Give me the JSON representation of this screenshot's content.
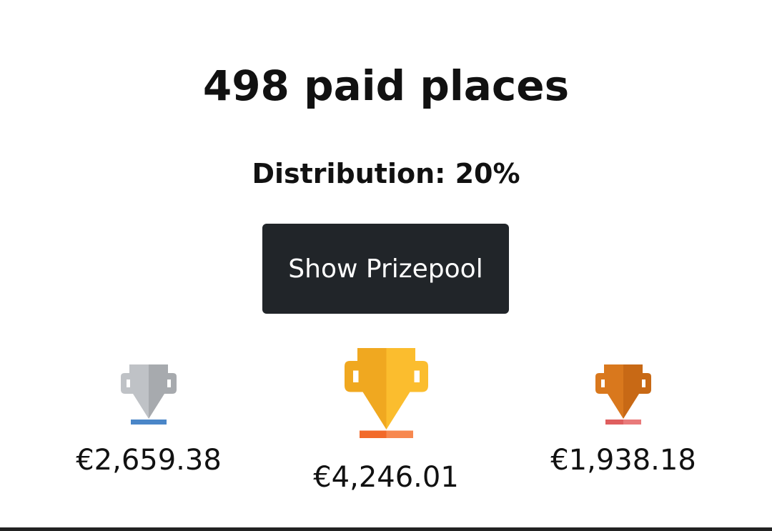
{
  "header": {
    "title": "498 paid places",
    "subtitle": "Distribution: 20%"
  },
  "button": {
    "label": "Show Prizepool"
  },
  "podium": [
    {
      "prize": "€2,659.38"
    },
    {
      "prize": "€4,246.01"
    },
    {
      "prize": "€1,938.18"
    }
  ]
}
